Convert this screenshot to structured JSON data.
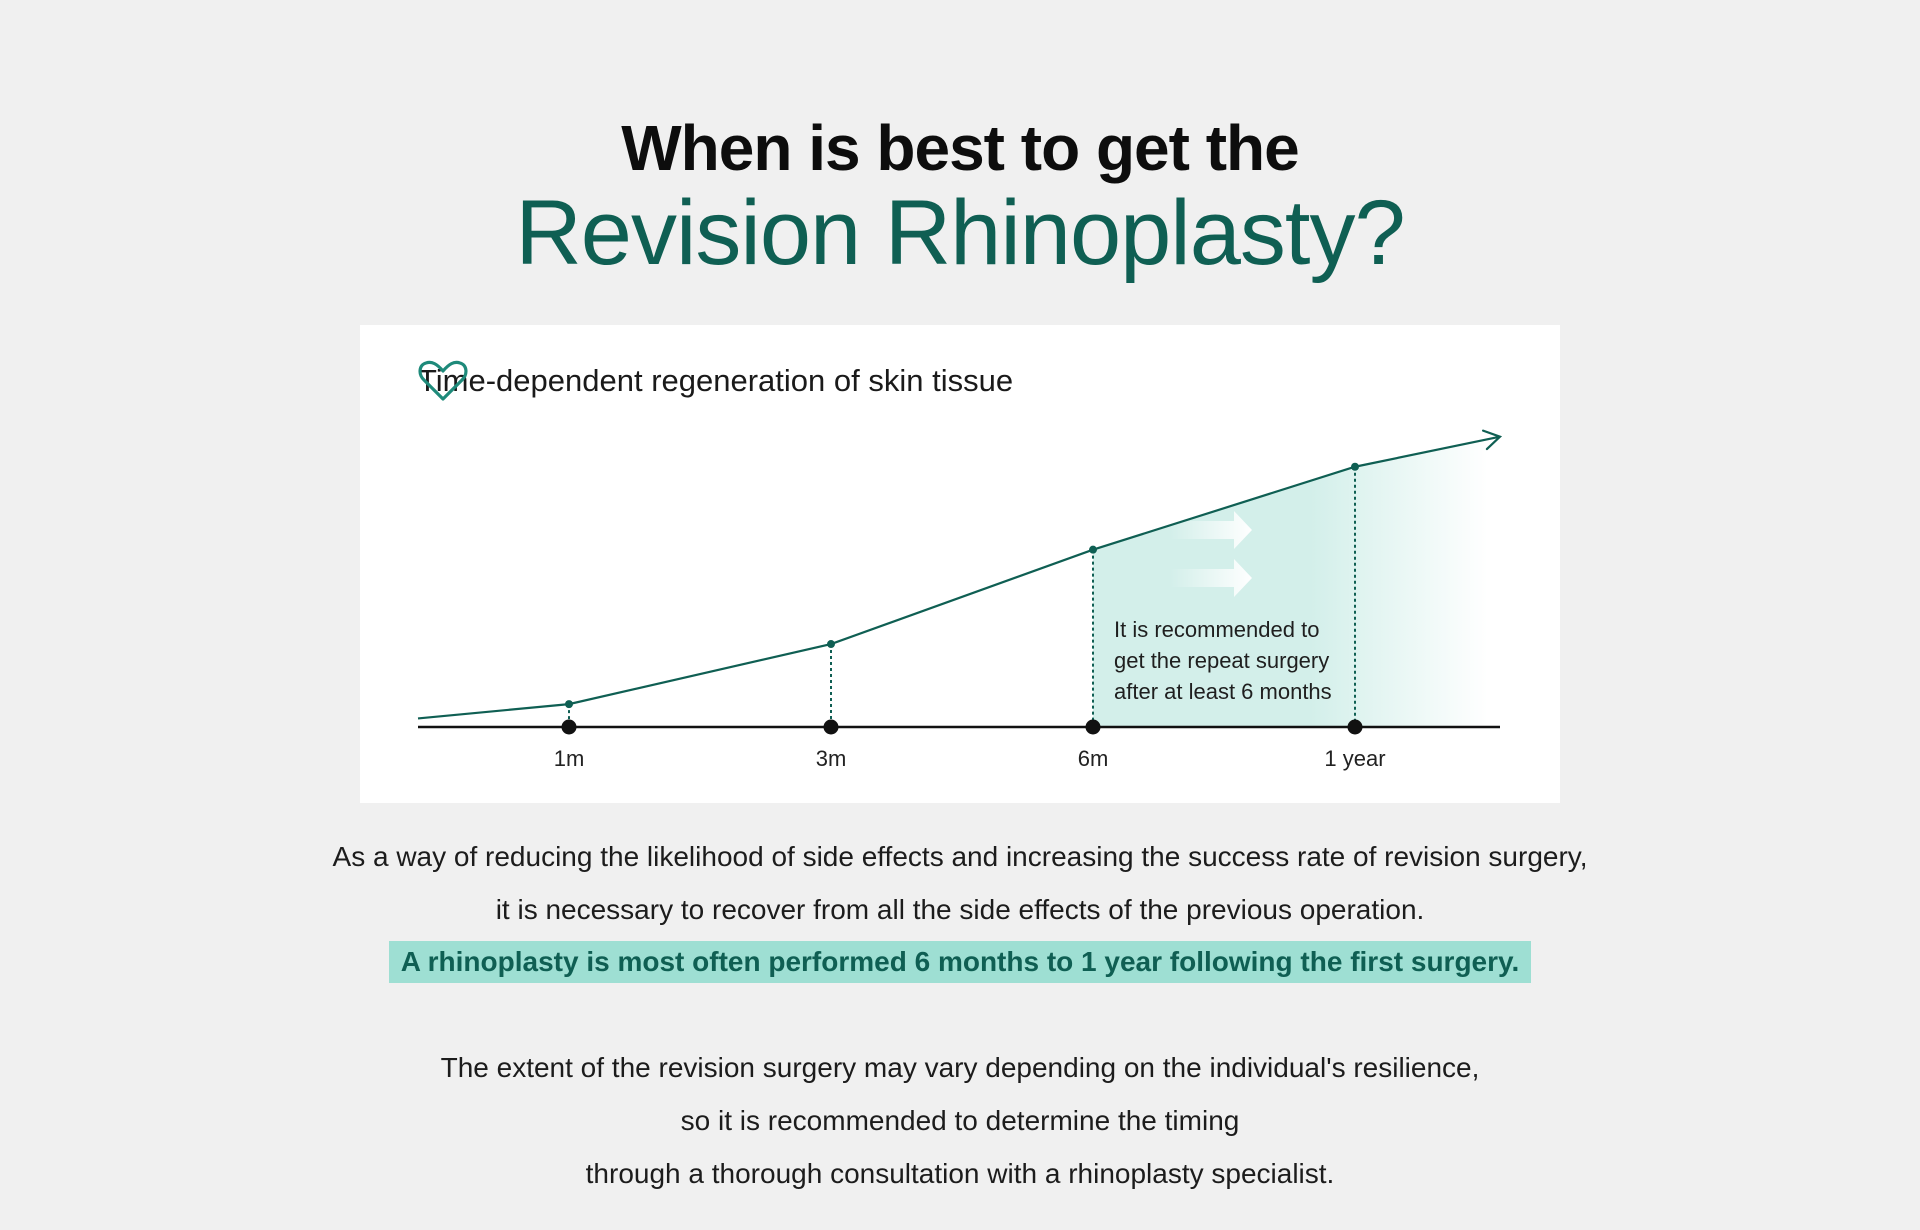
{
  "heading": {
    "line1": "When is best to get the",
    "line2": "Revision Rhinoplasty?"
  },
  "chart_data": {
    "type": "line",
    "title": "Time-dependent regeneration of skin tissue",
    "title_icon": "heart-icon",
    "categories": [
      "1m",
      "3m",
      "6m",
      "1 year"
    ],
    "x_months": [
      1,
      3,
      6,
      12
    ],
    "series": [
      {
        "values": [
          8,
          29,
          62,
          91
        ]
      }
    ],
    "annotation": {
      "lines": [
        "It is recommended to",
        "get the repeat surgery",
        "after at least 6 months"
      ],
      "shaded_region": [
        "6m",
        "1 year"
      ]
    },
    "grid": false,
    "legend": "none",
    "colors": {
      "line": "#0f5f53",
      "shade": "#d3efea",
      "axis": "#111111",
      "arrow": "#ffffff"
    }
  },
  "body": {
    "paragraph1": [
      "As a way of reducing the likelihood of side effects and increasing the success rate of revision surgery,",
      "it is necessary to recover from all the side effects of the previous operation."
    ],
    "highlight": "A rhinoplasty is most often performed 6 months to 1 year following the first surgery.",
    "paragraph2": [
      "The extent of the revision surgery may vary depending on the individual's resilience,",
      "so it is recommended to determine the timing",
      "through a thorough consultation with a rhinoplasty specialist."
    ]
  },
  "colors": {
    "background": "#f0f0f0",
    "accent": "#0f5f53",
    "highlight_bg": "#9edfd3"
  }
}
